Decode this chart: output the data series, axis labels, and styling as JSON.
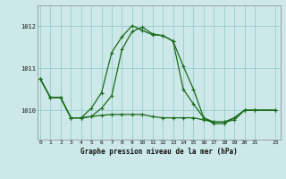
{
  "title": "Graphe pression niveau de la mer (hPa)",
  "bg_color": "#cce8e8",
  "grid_color": "#99cccc",
  "line_color": "#1a6b1a",
  "x_ticks": [
    0,
    1,
    2,
    3,
    4,
    5,
    6,
    7,
    8,
    9,
    10,
    11,
    12,
    13,
    14,
    15,
    16,
    17,
    18,
    19,
    20,
    21,
    23
  ],
  "xlim": [
    -0.3,
    23.5
  ],
  "ylim": [
    1009.3,
    1012.5
  ],
  "y_ticks": [
    1010,
    1011,
    1012
  ],
  "x_data": [
    0,
    1,
    2,
    3,
    4,
    5,
    6,
    7,
    8,
    9,
    10,
    11,
    12,
    13,
    14,
    15,
    16,
    17,
    18,
    19,
    20,
    21,
    23
  ],
  "s1": [
    1010.75,
    1010.3,
    1010.3,
    1009.82,
    1009.82,
    1009.85,
    1009.88,
    1009.9,
    1009.9,
    1009.9,
    1009.9,
    1009.85,
    1009.82,
    1009.82,
    1009.82,
    1009.82,
    1009.77,
    1009.72,
    1009.72,
    1009.77,
    1010.0,
    1010.0,
    1010.0
  ],
  "s2": [
    1010.75,
    1010.3,
    1010.3,
    1009.82,
    1009.82,
    1010.05,
    1010.42,
    1011.38,
    1011.75,
    1012.02,
    1011.9,
    1011.8,
    1011.78,
    1011.65,
    1011.05,
    1010.5,
    1009.82,
    1009.68,
    1009.68,
    1009.82,
    1010.0,
    1010.0,
    1010.0
  ],
  "s3": [
    1010.75,
    1010.3,
    1010.3,
    1009.82,
    1009.82,
    1009.85,
    1010.05,
    1010.35,
    1011.45,
    1011.88,
    1011.98,
    1011.82,
    1011.78,
    1011.65,
    1010.5,
    1010.15,
    1009.82,
    1009.72,
    1009.72,
    1009.82,
    1010.0,
    1010.0,
    1010.0
  ]
}
